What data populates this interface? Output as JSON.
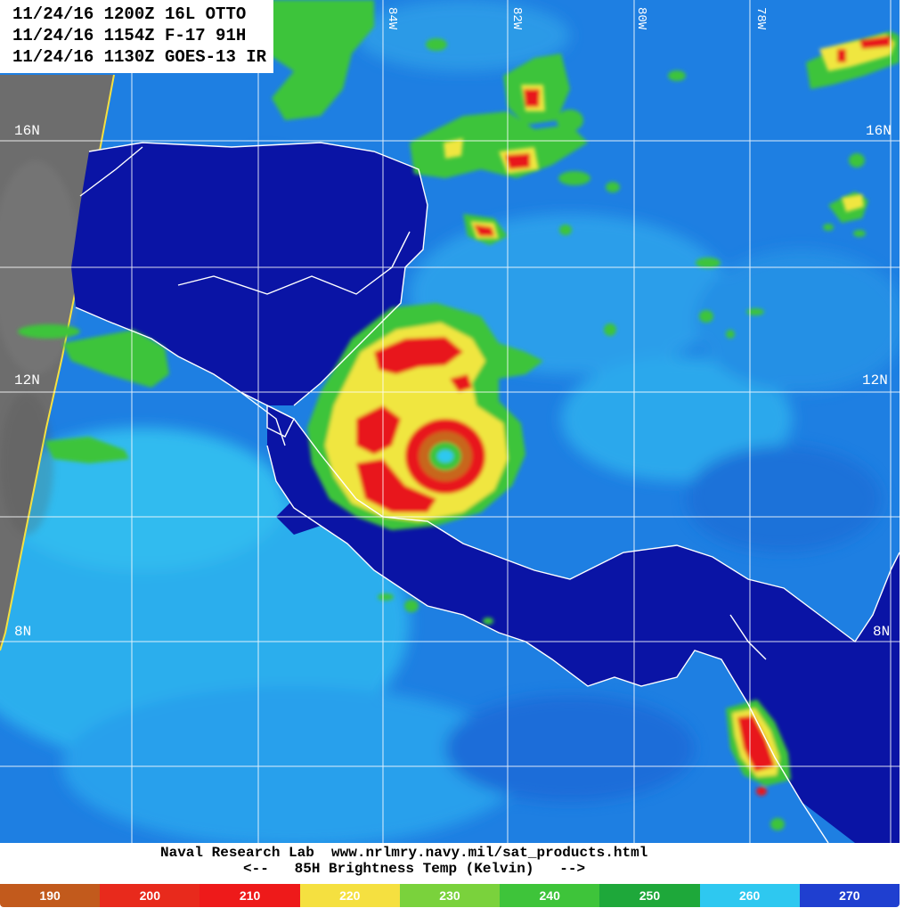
{
  "header": {
    "line1": "11/24/16 1200Z 16L OTTO",
    "line2": "11/24/16 1154Z F-17 91H",
    "line3": "11/24/16 1130Z GOES-13 IR"
  },
  "lat_labels": {
    "lat16_left": "16N",
    "lat16_right": "16N",
    "lat12_left": "12N",
    "lat12_right": "12N",
    "lat8_left": "8N",
    "lat8_right": "8N"
  },
  "lon_labels": {
    "lon84": "84W",
    "lon82": "82W",
    "lon80": "80W",
    "lon78": "78W"
  },
  "footer": {
    "credit": "Naval Research Lab  www.nrlmry.navy.mil/sat_products.html",
    "product": "<--   85H Brightness Temp (Kelvin)   -->"
  },
  "scale": {
    "ticks": [
      "190",
      "200",
      "210",
      "220",
      "230",
      "240",
      "250",
      "260",
      "270"
    ],
    "colors": [
      "#c25a1c",
      "#e82a1c",
      "#ee1a1a",
      "#f5e040",
      "#7ad23c",
      "#3ec43a",
      "#1ea83a",
      "#2ec8f0",
      "#1f3fd0"
    ]
  },
  "palette": {
    "ocean_blue": "#1e8ae6",
    "deep_blue": "#0a16a8",
    "cyan": "#32c3f0",
    "green": "#3cc43a",
    "yellow": "#f0e640",
    "red": "#e8161a",
    "ir_gray": "#6c6c6c"
  }
}
